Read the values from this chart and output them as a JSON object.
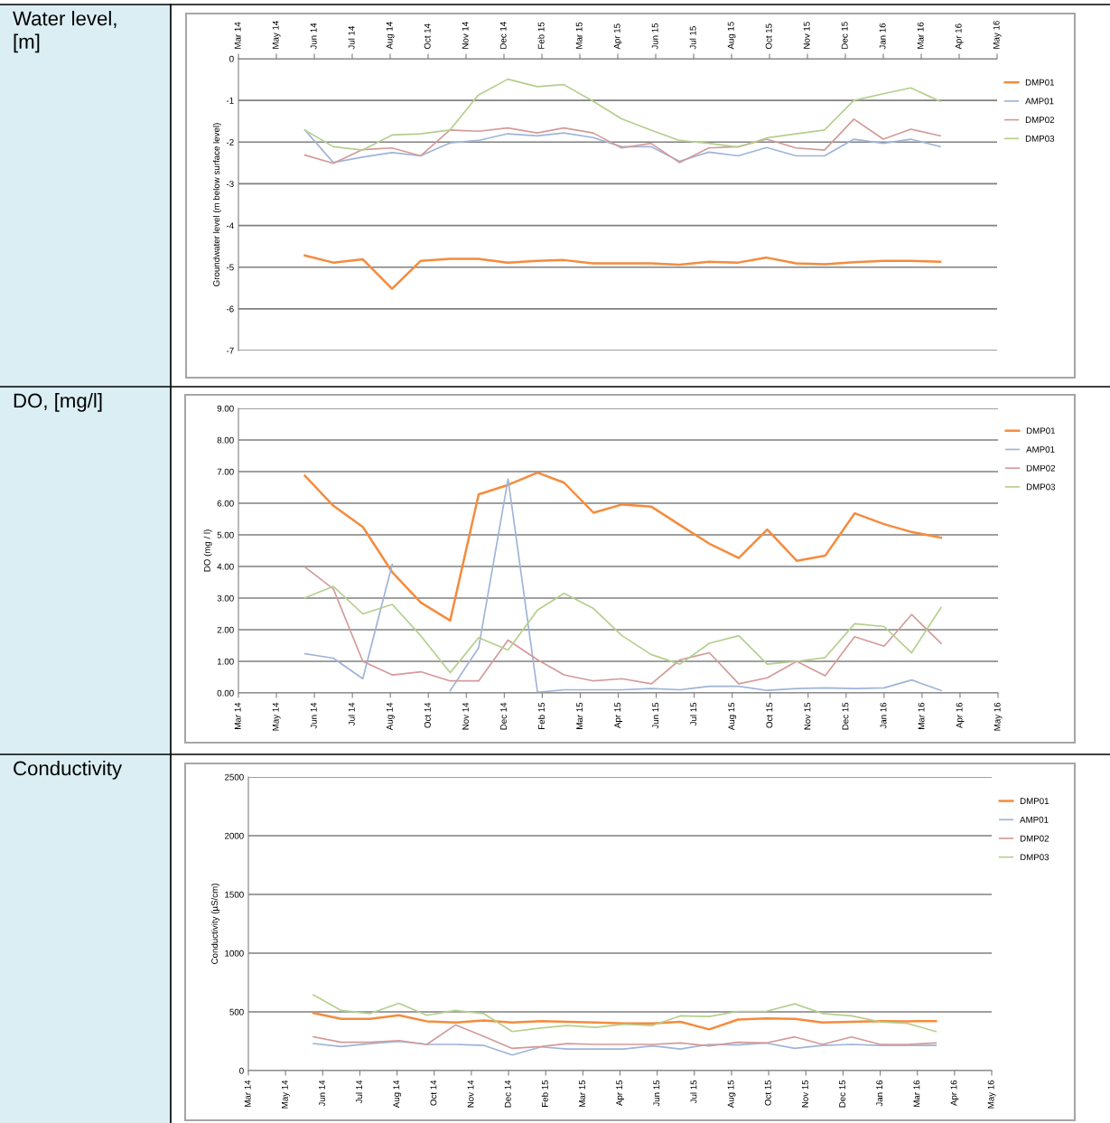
{
  "chart_data": [
    {
      "type": "line",
      "title": "Water level, [m]",
      "ylabel": "Groundwater level (m below surface level)",
      "xlim": [
        "2014-03-22",
        "2016-05-30"
      ],
      "xticks": [
        {
          "value": "2014-03-22",
          "label": "Mar 14"
        },
        {
          "value": "2014-05-01",
          "label": "May 14"
        },
        {
          "value": "2014-06-10",
          "label": "Jun 14"
        },
        {
          "value": "2014-07-20",
          "label": "Jul 14"
        },
        {
          "value": "2014-08-29",
          "label": "Aug 14"
        },
        {
          "value": "2014-10-08",
          "label": "Oct 14"
        },
        {
          "value": "2014-11-17",
          "label": "Nov 14"
        },
        {
          "value": "2014-12-27",
          "label": "Dec 14"
        },
        {
          "value": "2015-02-05",
          "label": "Feb 15"
        },
        {
          "value": "2015-03-17",
          "label": "Mar 15"
        },
        {
          "value": "2015-04-26",
          "label": "Apr 15"
        },
        {
          "value": "2015-06-05",
          "label": "Jun 15"
        },
        {
          "value": "2015-07-15",
          "label": "Jul 15"
        },
        {
          "value": "2015-08-24",
          "label": "Aug 15"
        },
        {
          "value": "2015-10-03",
          "label": "Oct 15"
        },
        {
          "value": "2015-11-12",
          "label": "Nov 15"
        },
        {
          "value": "2015-12-22",
          "label": "Dec 15"
        },
        {
          "value": "2016-01-31",
          "label": "Jan 16"
        },
        {
          "value": "2016-03-11",
          "label": "Mar 16"
        },
        {
          "value": "2016-04-20",
          "label": "Apr 16"
        },
        {
          "value": "2016-05-30",
          "label": "May 16"
        }
      ],
      "ylim": [
        -7,
        0
      ],
      "yticks": [
        -7,
        -6,
        -5,
        -4,
        -3,
        -2,
        -1,
        0
      ],
      "grid": "y",
      "legend": "right",
      "marker": "none",
      "line_style": "solid",
      "x": [
        "2014-05-31",
        "2014-06-30",
        "2014-07-31",
        "2014-08-31",
        "2014-09-30",
        "2014-10-31",
        "2014-11-30",
        "2014-12-31",
        "2015-01-31",
        "2015-02-28",
        "2015-03-31",
        "2015-04-30",
        "2015-05-31",
        "2015-06-30",
        "2015-07-31",
        "2015-08-31",
        "2015-09-30",
        "2015-10-31",
        "2015-11-30",
        "2015-12-31",
        "2016-01-31",
        "2016-02-29",
        "2016-03-31"
      ],
      "series": [
        {
          "name": "DMP01",
          "color": "#f58b3c",
          "values": [
            -4.72,
            -4.89,
            -4.81,
            -5.52,
            -4.85,
            -4.8,
            -4.8,
            -4.89,
            -4.85,
            -4.83,
            -4.91,
            -4.91,
            -4.91,
            -4.94,
            -4.87,
            -4.89,
            -4.77,
            -4.91,
            -4.93,
            -4.88,
            -4.85,
            -4.85,
            -4.87
          ]
        },
        {
          "name": "AMP01",
          "color": "#9fb4d8",
          "values": [
            -1.71,
            -2.49,
            -2.36,
            -2.25,
            -2.33,
            -2.02,
            -1.96,
            -1.8,
            -1.85,
            -1.78,
            -1.89,
            -2.11,
            -2.11,
            -2.46,
            -2.24,
            -2.33,
            -2.13,
            -2.33,
            -2.33,
            -1.93,
            -2.03,
            -1.93,
            -2.11
          ]
        },
        {
          "name": "DMP02",
          "color": "#d49a9a",
          "values": [
            -2.31,
            -2.51,
            -2.18,
            -2.14,
            -2.33,
            -1.71,
            -1.74,
            -1.66,
            -1.78,
            -1.66,
            -1.78,
            -2.14,
            -2.03,
            -2.49,
            -2.14,
            -2.11,
            -1.93,
            -2.14,
            -2.19,
            -1.45,
            -1.93,
            -1.69,
            -1.85
          ]
        },
        {
          "name": "DMP03",
          "color": "#b4cf8e",
          "values": [
            -1.71,
            -2.11,
            -2.19,
            -1.83,
            -1.8,
            -1.71,
            -0.87,
            -0.49,
            -0.67,
            -0.62,
            -1.02,
            -1.44,
            -1.71,
            -1.96,
            -2.03,
            -2.12,
            -1.9,
            -1.8,
            -1.71,
            -1.0,
            -0.84,
            -0.7,
            -1.02
          ]
        }
      ]
    },
    {
      "type": "line",
      "title": "DO, [mg/l]",
      "ylabel": "DO (mg / l)",
      "xlim": [
        "2014-03-22",
        "2016-05-30"
      ],
      "xticks": [
        {
          "value": "2014-03-22",
          "label": "Mar 14"
        },
        {
          "value": "2014-05-01",
          "label": "May 14"
        },
        {
          "value": "2014-06-10",
          "label": "Jun 14"
        },
        {
          "value": "2014-07-20",
          "label": "Jul 14"
        },
        {
          "value": "2014-08-29",
          "label": "Aug 14"
        },
        {
          "value": "2014-10-08",
          "label": "Oct 14"
        },
        {
          "value": "2014-11-17",
          "label": "Nov 14"
        },
        {
          "value": "2014-12-27",
          "label": "Dec 14"
        },
        {
          "value": "2015-02-05",
          "label": "Feb 15"
        },
        {
          "value": "2015-03-17",
          "label": "Mar 15"
        },
        {
          "value": "2015-04-26",
          "label": "Apr 15"
        },
        {
          "value": "2015-06-05",
          "label": "Jun 15"
        },
        {
          "value": "2015-07-15",
          "label": "Jul 15"
        },
        {
          "value": "2015-08-24",
          "label": "Aug 15"
        },
        {
          "value": "2015-10-03",
          "label": "Oct 15"
        },
        {
          "value": "2015-11-12",
          "label": "Nov 15"
        },
        {
          "value": "2015-12-22",
          "label": "Dec 15"
        },
        {
          "value": "2016-01-31",
          "label": "Jan 16"
        },
        {
          "value": "2016-03-11",
          "label": "Mar 16"
        },
        {
          "value": "2016-04-20",
          "label": "Apr 16"
        },
        {
          "value": "2016-05-30",
          "label": "May 16"
        }
      ],
      "ylim": [
        0,
        9
      ],
      "yticks": [
        {
          "value": 0,
          "label": "0.00"
        },
        {
          "value": 1,
          "label": "1.00"
        },
        {
          "value": 2,
          "label": "2.00"
        },
        {
          "value": 3,
          "label": "3.00"
        },
        {
          "value": 4,
          "label": "4.00"
        },
        {
          "value": 5,
          "label": "5.00"
        },
        {
          "value": 6,
          "label": "6.00"
        },
        {
          "value": 7,
          "label": "7.00"
        },
        {
          "value": 8,
          "label": "8.00"
        },
        {
          "value": 9,
          "label": "9.00"
        }
      ],
      "grid": "y",
      "legend": "right",
      "marker": "none",
      "line_style": "solid",
      "x": [
        "2014-05-31",
        "2014-06-30",
        "2014-07-31",
        "2014-08-31",
        "2014-09-30",
        "2014-10-31",
        "2014-11-30",
        "2014-12-31",
        "2015-01-31",
        "2015-02-28",
        "2015-03-31",
        "2015-04-30",
        "2015-05-31",
        "2015-06-30",
        "2015-07-31",
        "2015-08-31",
        "2015-09-30",
        "2015-10-31",
        "2015-11-30",
        "2015-12-31",
        "2016-01-31",
        "2016-02-29",
        "2016-03-31"
      ],
      "series": [
        {
          "name": "DMP01",
          "color": "#f58b3c",
          "values": [
            6.87,
            5.92,
            5.25,
            3.82,
            2.86,
            2.29,
            6.28,
            6.58,
            6.97,
            6.65,
            5.7,
            5.96,
            5.89,
            5.31,
            4.72,
            4.27,
            5.17,
            4.18,
            4.34,
            5.68,
            5.34,
            5.09,
            4.91
          ]
        },
        {
          "name": "AMP01",
          "color": "#9fb4d8",
          "values": [
            1.24,
            1.1,
            0.45,
            4.07,
            null,
            0.07,
            1.43,
            6.77,
            0.02,
            0.1,
            0.1,
            0.1,
            0.14,
            0.1,
            0.21,
            0.21,
            0.08,
            0.14,
            0.16,
            0.14,
            0.16,
            0.41,
            0.08
          ]
        },
        {
          "name": "DMP02",
          "color": "#d49a9a",
          "values": [
            3.98,
            3.29,
            1.0,
            0.57,
            0.67,
            0.38,
            0.38,
            1.67,
            1.05,
            0.57,
            0.38,
            0.45,
            0.29,
            1.05,
            1.27,
            0.29,
            0.48,
            1.0,
            0.54,
            1.78,
            1.48,
            2.48,
            1.57
          ]
        },
        {
          "name": "DMP03",
          "color": "#b4cf8e",
          "values": [
            3.01,
            3.37,
            2.5,
            2.8,
            1.81,
            0.64,
            1.75,
            1.36,
            2.62,
            3.15,
            2.67,
            1.81,
            1.21,
            0.91,
            1.57,
            1.81,
            0.91,
            1.0,
            1.12,
            2.19,
            2.1,
            1.27,
            2.7
          ]
        }
      ]
    },
    {
      "type": "line",
      "title": "Conductivity",
      "ylabel": "Conductivity (µS/cm)",
      "xlim": [
        "2014-03-22",
        "2016-05-30"
      ],
      "xticks": [
        {
          "value": "2014-03-22",
          "label": "Mar 14"
        },
        {
          "value": "2014-05-01",
          "label": "May 14"
        },
        {
          "value": "2014-06-10",
          "label": "Jun 14"
        },
        {
          "value": "2014-07-20",
          "label": "Jul 14"
        },
        {
          "value": "2014-08-29",
          "label": "Aug 14"
        },
        {
          "value": "2014-10-08",
          "label": "Oct 14"
        },
        {
          "value": "2014-11-17",
          "label": "Nov 14"
        },
        {
          "value": "2014-12-27",
          "label": "Dec 14"
        },
        {
          "value": "2015-02-05",
          "label": "Feb 15"
        },
        {
          "value": "2015-03-17",
          "label": "Mar 15"
        },
        {
          "value": "2015-04-26",
          "label": "Apr 15"
        },
        {
          "value": "2015-06-05",
          "label": "Jun 15"
        },
        {
          "value": "2015-07-15",
          "label": "Jul 15"
        },
        {
          "value": "2015-08-24",
          "label": "Aug 15"
        },
        {
          "value": "2015-10-03",
          "label": "Oct 15"
        },
        {
          "value": "2015-11-12",
          "label": "Nov 15"
        },
        {
          "value": "2015-12-22",
          "label": "Dec 15"
        },
        {
          "value": "2016-01-31",
          "label": "Jan 16"
        },
        {
          "value": "2016-03-11",
          "label": "Mar 16"
        },
        {
          "value": "2016-04-20",
          "label": "Apr 16"
        },
        {
          "value": "2016-05-30",
          "label": "May 16"
        }
      ],
      "ylim": [
        0,
        2500
      ],
      "yticks": [
        0,
        500,
        1000,
        1500,
        2000,
        2500
      ],
      "grid": "y",
      "legend": "right",
      "marker": "none",
      "line_style": "solid",
      "x": [
        "2014-05-31",
        "2014-06-30",
        "2014-07-31",
        "2014-08-31",
        "2014-09-30",
        "2014-10-31",
        "2014-11-30",
        "2014-12-31",
        "2015-01-31",
        "2015-02-28",
        "2015-03-31",
        "2015-04-30",
        "2015-05-31",
        "2015-06-30",
        "2015-07-31",
        "2015-08-31",
        "2015-09-30",
        "2015-10-31",
        "2015-11-30",
        "2015-12-31",
        "2016-01-31",
        "2016-02-29",
        "2016-03-31"
      ],
      "series": [
        {
          "name": "DMP01",
          "color": "#f58b3c",
          "values": [
            491,
            440,
            440,
            471,
            420,
            409,
            427,
            409,
            422,
            415,
            409,
            402,
            402,
            415,
            351,
            435,
            445,
            440,
            409,
            415,
            422,
            420,
            422
          ]
        },
        {
          "name": "AMP01",
          "color": "#9fb4d8",
          "values": [
            230,
            205,
            230,
            248,
            223,
            223,
            215,
            133,
            202,
            184,
            184,
            184,
            210,
            184,
            223,
            218,
            235,
            189,
            215,
            223,
            215,
            215,
            215
          ]
        },
        {
          "name": "DMP02",
          "color": "#d49a9a",
          "values": [
            287,
            241,
            241,
            256,
            223,
            389,
            292,
            189,
            205,
            230,
            223,
            223,
            223,
            235,
            210,
            241,
            235,
            287,
            223,
            287,
            223,
            223,
            235
          ]
        },
        {
          "name": "DMP03",
          "color": "#b4cf8e",
          "values": [
            645,
            512,
            486,
            573,
            471,
            512,
            486,
            333,
            363,
            384,
            368,
            394,
            384,
            466,
            461,
            504,
            504,
            568,
            486,
            466,
            415,
            402,
            333
          ]
        }
      ]
    }
  ]
}
